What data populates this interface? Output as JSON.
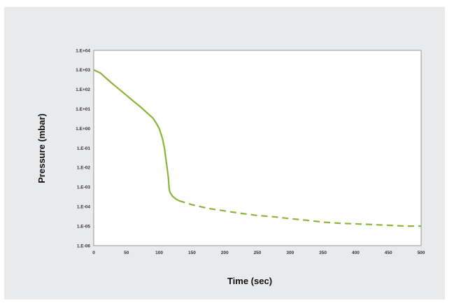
{
  "chart_data": {
    "type": "line",
    "title": "",
    "xlabel": "Time (sec)",
    "ylabel": "Pressure (mbar)",
    "xlim": [
      0,
      500
    ],
    "ylim": [
      1e-06,
      10000.0
    ],
    "yscale": "log",
    "grid": true,
    "legend": "none",
    "x_ticks": [
      "0",
      "50",
      "100",
      "150",
      "200",
      "250",
      "300",
      "350",
      "400",
      "450",
      "500"
    ],
    "y_ticks": [
      "1.E+04",
      "1.E+03",
      "1.E+02",
      "1.E+01",
      "1.E+00",
      "1.E-01",
      "1.E-02",
      "1.E-03",
      "1.E-04",
      "1.E-05",
      "1.E-06"
    ],
    "series": [
      {
        "style": "solid",
        "color": "#8cb43a",
        "x": [
          0,
          10,
          20,
          30,
          40,
          50,
          60,
          70,
          80,
          90,
          95,
          100,
          105,
          108,
          110,
          112,
          114,
          115,
          116,
          117,
          120,
          125,
          130
        ],
        "y": [
          1000,
          700,
          350,
          180,
          95,
          50,
          26,
          14,
          7,
          3.5,
          2,
          1,
          0.3,
          0.1,
          0.03,
          0.01,
          0.003,
          0.001,
          0.0006,
          0.0005,
          0.00035,
          0.00025,
          0.0002
        ]
      },
      {
        "style": "dashed",
        "color": "#8cb43a",
        "x": [
          130,
          150,
          175,
          200,
          225,
          250,
          275,
          300,
          325,
          350,
          375,
          400,
          425,
          450,
          475,
          500
        ],
        "y": [
          0.0002,
          0.000125,
          8e-05,
          6e-05,
          4.5e-05,
          3.5e-05,
          3e-05,
          2.4e-05,
          2e-05,
          1.6e-05,
          1.4e-05,
          1.3e-05,
          1.2e-05,
          1.1e-05,
          1e-05,
          1e-05
        ]
      }
    ]
  }
}
